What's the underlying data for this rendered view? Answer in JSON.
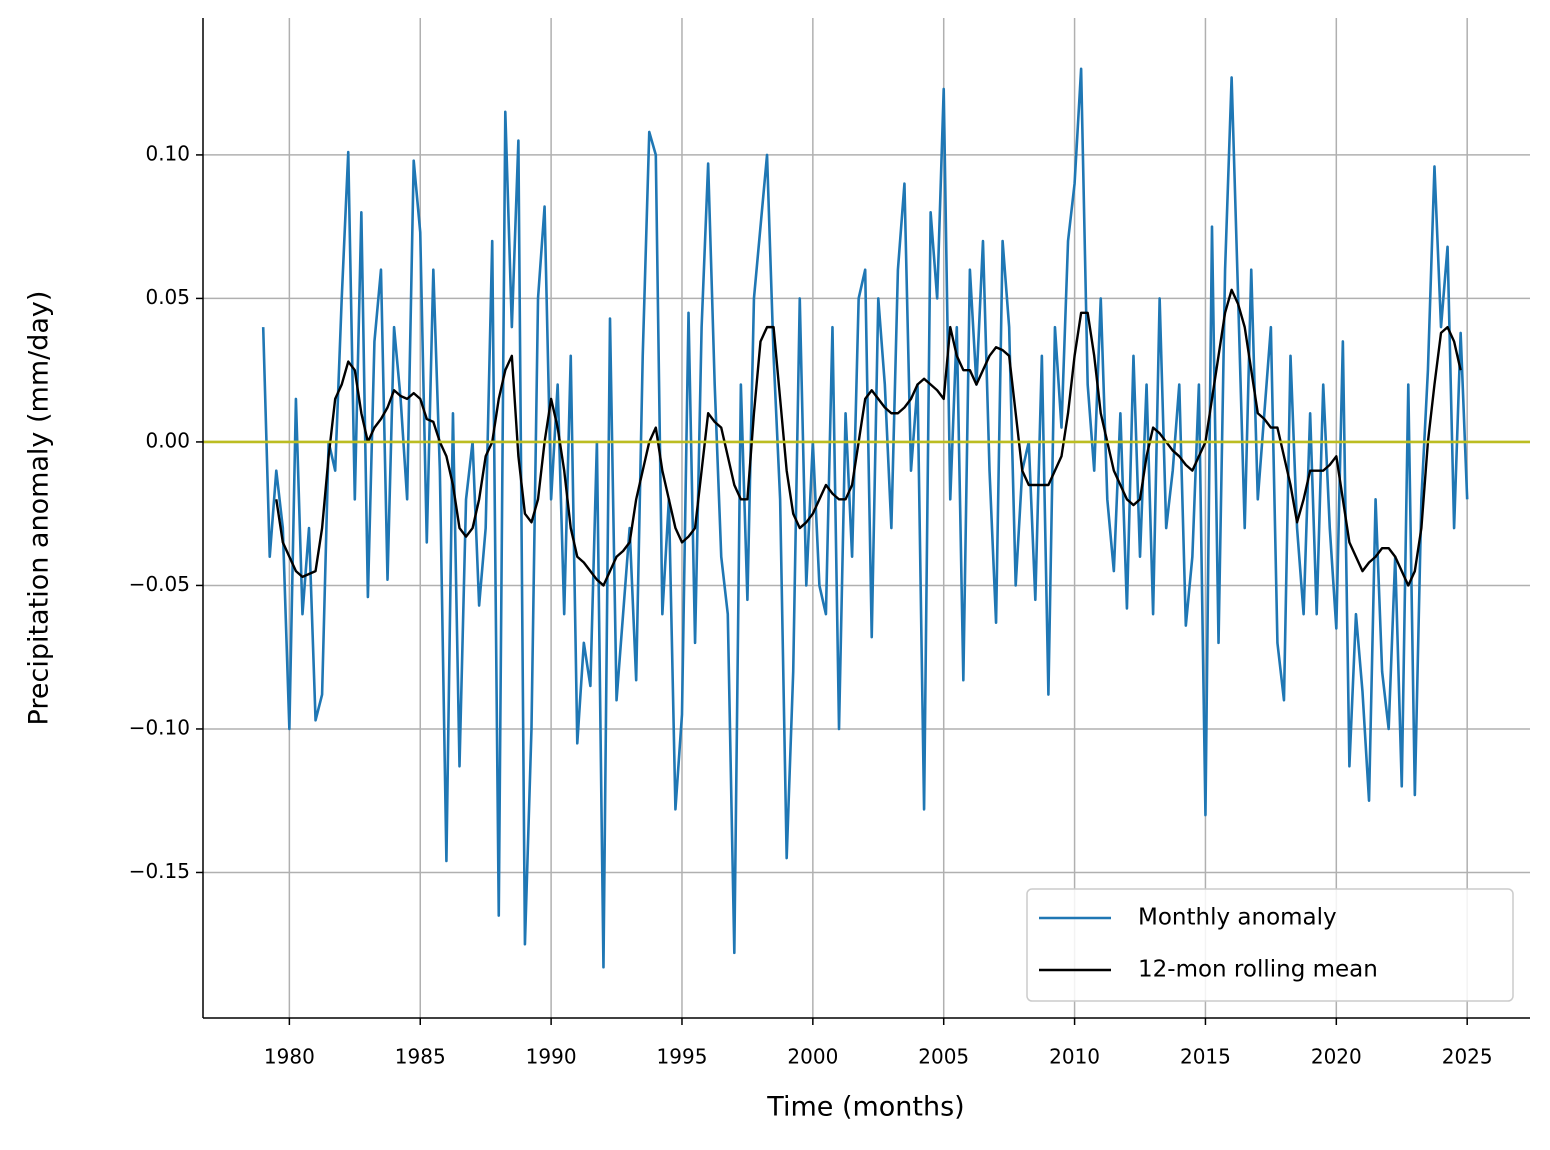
{
  "chart_data": {
    "type": "line",
    "xlabel": "Time (months)",
    "ylabel": "Precipitation anomaly (mm/day)",
    "x": [
      1979,
      1979.25,
      1979.5,
      1979.75,
      1980,
      1980.25,
      1980.5,
      1980.75,
      1981,
      1981.25,
      1981.5,
      1981.75,
      1982,
      1982.25,
      1982.5,
      1982.75,
      1983,
      1983.25,
      1983.5,
      1983.75,
      1984,
      1984.25,
      1984.5,
      1984.75,
      1985,
      1985.25,
      1985.5,
      1985.75,
      1986,
      1986.25,
      1986.5,
      1986.75,
      1987,
      1987.25,
      1987.5,
      1987.75,
      1988,
      1988.25,
      1988.5,
      1988.75,
      1989,
      1989.25,
      1989.5,
      1989.75,
      1990,
      1990.25,
      1990.5,
      1990.75,
      1991,
      1991.25,
      1991.5,
      1991.75,
      1992,
      1992.25,
      1992.5,
      1992.75,
      1993,
      1993.25,
      1993.5,
      1993.75,
      1994,
      1994.25,
      1994.5,
      1994.75,
      1995,
      1995.25,
      1995.5,
      1995.75,
      1996,
      1996.25,
      1996.5,
      1996.75,
      1997,
      1997.25,
      1997.5,
      1997.75,
      1998,
      1998.25,
      1998.5,
      1998.75,
      1999,
      1999.25,
      1999.5,
      1999.75,
      2000,
      2000.25,
      2000.5,
      2000.75,
      2001,
      2001.25,
      2001.5,
      2001.75,
      2002,
      2002.25,
      2002.5,
      2002.75,
      2003,
      2003.25,
      2003.5,
      2003.75,
      2004,
      2004.25,
      2004.5,
      2004.75,
      2005,
      2005.25,
      2005.5,
      2005.75,
      2006,
      2006.25,
      2006.5,
      2006.75,
      2007,
      2007.25,
      2007.5,
      2007.75,
      2008,
      2008.25,
      2008.5,
      2008.75,
      2009,
      2009.25,
      2009.5,
      2009.75,
      2010,
      2010.25,
      2010.5,
      2010.75,
      2011,
      2011.25,
      2011.5,
      2011.75,
      2012,
      2012.25,
      2012.5,
      2012.75,
      2013,
      2013.25,
      2013.5,
      2013.75,
      2014,
      2014.25,
      2014.5,
      2014.75,
      2015,
      2015.25,
      2015.5,
      2015.75,
      2016,
      2016.25,
      2016.5,
      2016.75,
      2017,
      2017.25,
      2017.5,
      2017.75,
      2018,
      2018.25,
      2018.5,
      2018.75,
      2019,
      2019.25,
      2019.5,
      2019.75,
      2020,
      2020.25,
      2020.5,
      2020.75,
      2021,
      2021.25,
      2021.5,
      2021.75,
      2022,
      2022.25,
      2022.5,
      2022.75,
      2023,
      2023.25,
      2023.5,
      2023.75,
      2024,
      2024.25,
      2024.5,
      2024.75,
      2025
    ],
    "series": [
      {
        "name": "Monthly anomaly",
        "color": "#1f77b4",
        "values": [
          0.04,
          -0.04,
          -0.01,
          -0.03,
          -0.1,
          0.015,
          -0.06,
          -0.03,
          -0.097,
          -0.088,
          0.0,
          -0.01,
          0.05,
          0.101,
          -0.02,
          0.08,
          -0.054,
          0.035,
          0.06,
          -0.048,
          0.04,
          0.015,
          -0.02,
          0.098,
          0.073,
          -0.035,
          0.06,
          -0.01,
          -0.146,
          0.01,
          -0.113,
          -0.02,
          0.0,
          -0.057,
          -0.03,
          0.07,
          -0.165,
          0.115,
          0.04,
          0.105,
          -0.175,
          -0.1,
          0.05,
          0.082,
          -0.02,
          0.02,
          -0.06,
          0.03,
          -0.105,
          -0.07,
          -0.085,
          0.0,
          -0.183,
          0.043,
          -0.09,
          -0.06,
          -0.03,
          -0.083,
          0.03,
          0.108,
          0.1,
          -0.06,
          -0.02,
          -0.128,
          -0.095,
          0.045,
          -0.07,
          0.04,
          0.097,
          0.02,
          -0.04,
          -0.06,
          -0.178,
          0.02,
          -0.055,
          0.05,
          0.075,
          0.1,
          0.03,
          -0.02,
          -0.145,
          -0.08,
          0.05,
          -0.05,
          0.0,
          -0.05,
          -0.06,
          0.04,
          -0.1,
          0.01,
          -0.04,
          0.05,
          0.06,
          -0.068,
          0.05,
          0.02,
          -0.03,
          0.06,
          0.09,
          -0.01,
          0.02,
          -0.128,
          0.08,
          0.05,
          0.123,
          -0.02,
          0.04,
          -0.083,
          0.06,
          0.02,
          0.07,
          -0.01,
          -0.063,
          0.07,
          0.04,
          -0.05,
          -0.01,
          0.0,
          -0.055,
          0.03,
          -0.088,
          0.04,
          0.005,
          0.07,
          0.09,
          0.13,
          0.02,
          -0.01,
          0.05,
          -0.02,
          -0.045,
          0.01,
          -0.058,
          0.03,
          -0.04,
          0.02,
          -0.06,
          0.05,
          -0.03,
          -0.01,
          0.02,
          -0.064,
          -0.04,
          0.02,
          -0.13,
          0.075,
          -0.07,
          0.06,
          0.127,
          0.05,
          -0.03,
          0.06,
          -0.02,
          0.01,
          0.04,
          -0.07,
          -0.09,
          0.03,
          -0.03,
          -0.06,
          0.01,
          -0.06,
          0.02,
          -0.03,
          -0.065,
          0.035,
          -0.113,
          -0.06,
          -0.087,
          -0.125,
          -0.02,
          -0.08,
          -0.1,
          -0.04,
          -0.12,
          0.02,
          -0.123,
          -0.02,
          0.025,
          0.096,
          0.04,
          0.068,
          -0.03,
          0.038,
          -0.02
        ]
      },
      {
        "name": "12-mon rolling mean",
        "color": "#000000",
        "values": [
          null,
          null,
          -0.02,
          -0.035,
          -0.04,
          -0.045,
          -0.047,
          -0.046,
          -0.045,
          -0.03,
          -0.005,
          0.015,
          0.02,
          0.028,
          0.025,
          0.01,
          0.0,
          0.005,
          0.008,
          0.012,
          0.018,
          0.016,
          0.015,
          0.017,
          0.015,
          0.008,
          0.007,
          0.0,
          -0.005,
          -0.015,
          -0.03,
          -0.033,
          -0.03,
          -0.02,
          -0.005,
          0.0,
          0.015,
          0.025,
          0.03,
          -0.005,
          -0.025,
          -0.028,
          -0.02,
          0.0,
          0.015,
          0.005,
          -0.01,
          -0.03,
          -0.04,
          -0.042,
          -0.045,
          -0.048,
          -0.05,
          -0.045,
          -0.04,
          -0.038,
          -0.035,
          -0.02,
          -0.01,
          0.0,
          0.005,
          -0.01,
          -0.02,
          -0.03,
          -0.035,
          -0.033,
          -0.03,
          -0.01,
          0.01,
          0.007,
          0.005,
          -0.005,
          -0.015,
          -0.02,
          -0.02,
          0.01,
          0.035,
          0.04,
          0.04,
          0.015,
          -0.01,
          -0.025,
          -0.03,
          -0.028,
          -0.025,
          -0.02,
          -0.015,
          -0.018,
          -0.02,
          -0.02,
          -0.015,
          0.0,
          0.015,
          0.018,
          0.015,
          0.012,
          0.01,
          0.01,
          0.012,
          0.015,
          0.02,
          0.022,
          0.02,
          0.018,
          0.015,
          0.04,
          0.03,
          0.025,
          0.025,
          0.02,
          0.025,
          0.03,
          0.033,
          0.032,
          0.03,
          0.01,
          -0.01,
          -0.015,
          -0.015,
          -0.015,
          -0.015,
          -0.01,
          -0.005,
          0.01,
          0.03,
          0.045,
          0.045,
          0.03,
          0.01,
          0.0,
          -0.01,
          -0.015,
          -0.02,
          -0.022,
          -0.02,
          -0.005,
          0.005,
          0.003,
          0.0,
          -0.003,
          -0.005,
          -0.008,
          -0.01,
          -0.005,
          0.0,
          0.015,
          0.03,
          0.045,
          0.053,
          0.048,
          0.04,
          0.025,
          0.01,
          0.008,
          0.005,
          0.005,
          -0.005,
          -0.015,
          -0.028,
          -0.02,
          -0.01,
          -0.01,
          -0.01,
          -0.008,
          -0.005,
          -0.02,
          -0.035,
          -0.04,
          -0.045,
          -0.042,
          -0.04,
          -0.037,
          -0.037,
          -0.04,
          -0.045,
          -0.05,
          -0.045,
          -0.03,
          0.0,
          0.02,
          0.038,
          0.04,
          0.035,
          0.025,
          null
        ]
      }
    ],
    "hline": {
      "value": 0,
      "color": "#bcbd22"
    },
    "xlim": [
      1976.7,
      2027.4
    ],
    "ylim": [
      -0.2007,
      0.1477
    ],
    "xticks": [
      1980,
      1985,
      1990,
      1995,
      2000,
      2005,
      2010,
      2015,
      2020,
      2025
    ],
    "yticks": [
      {
        "value": -0.15,
        "label": "−0.15"
      },
      {
        "value": -0.1,
        "label": "−0.10"
      },
      {
        "value": -0.05,
        "label": "−0.05"
      },
      {
        "value": 0,
        "label": "0.00"
      },
      {
        "value": 0.05,
        "label": "0.05"
      },
      {
        "value": 0.1,
        "label": "0.10"
      }
    ],
    "grid": true,
    "legend": "lower right"
  }
}
